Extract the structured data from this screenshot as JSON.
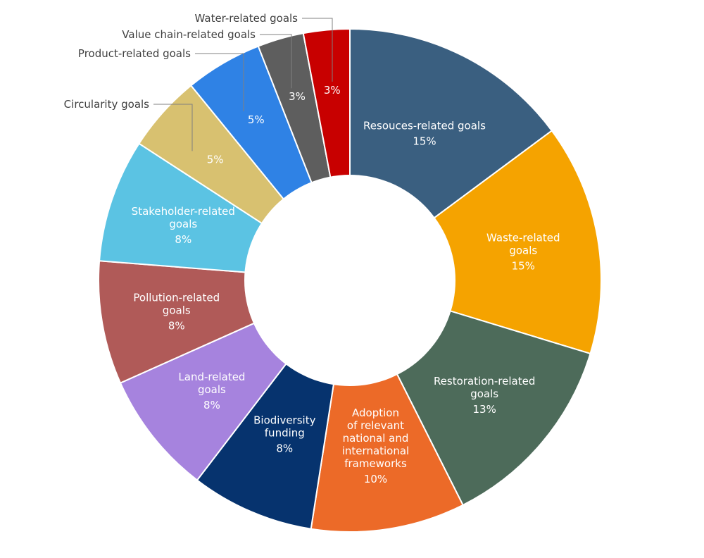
{
  "chart_data": {
    "type": "pie",
    "donut": true,
    "title": "",
    "legend": "none",
    "slices": [
      {
        "label": "Resouces-related goals",
        "value": 15,
        "value_label": "15%",
        "color": "#3a5f80"
      },
      {
        "label": "Waste-related goals",
        "value": 15,
        "value_label": "15%",
        "color": "#f5a300"
      },
      {
        "label": "Restoration-related goals",
        "value": 13,
        "value_label": "13%",
        "color": "#4d6b5a"
      },
      {
        "label": "Adoption of relevant national and international frameworks",
        "value": 10,
        "value_label": "10%",
        "color": "#ec6a28"
      },
      {
        "label": "Biodiversity funding",
        "value": 8,
        "value_label": "8%",
        "color": "#06336e"
      },
      {
        "label": "Land-related goals",
        "value": 8,
        "value_label": "8%",
        "color": "#a683de"
      },
      {
        "label": "Pollution-related goals",
        "value": 8,
        "value_label": "8%",
        "color": "#b05a58"
      },
      {
        "label": "Stakeholder-related goals",
        "value": 8,
        "value_label": "8%",
        "color": "#5bc3e3"
      },
      {
        "label": "Circularity goals",
        "value": 5,
        "value_label": "5%",
        "color": "#d8c170"
      },
      {
        "label": "Product-related goals",
        "value": 5,
        "value_label": "5%",
        "color": "#2f82e5"
      },
      {
        "label": "Value chain-related goals",
        "value": 3,
        "value_label": "3%",
        "color": "#5e5e5e"
      },
      {
        "label": "Water-related goals",
        "value": 3,
        "value_label": "3%",
        "color": "#c80000"
      }
    ]
  }
}
